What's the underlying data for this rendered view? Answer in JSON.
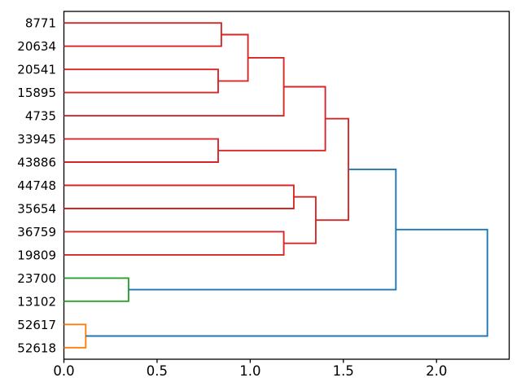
{
  "figure": {
    "background": "#ffffff",
    "spine_color": "#000000",
    "text_color": "#000000"
  },
  "chart_data": {
    "type": "dendrogram",
    "title": "",
    "xlabel": "",
    "ylabel": "",
    "orientation": "leaves-left-root-right",
    "grid": "off",
    "legend": "none",
    "leaves": [
      "8771",
      "20634",
      "20541",
      "15895",
      "4735",
      "33945",
      "43886",
      "44748",
      "35654",
      "36759",
      "19809",
      "23700",
      "13102",
      "52617",
      "52618"
    ],
    "x_ticks": [
      {
        "label": "0.0",
        "value": 0.0
      },
      {
        "label": "0.5",
        "value": 0.5
      },
      {
        "label": "1.0",
        "value": 1.0
      },
      {
        "label": "1.5",
        "value": 1.5
      },
      {
        "label": "2.0",
        "value": 2.0
      }
    ],
    "xlim": [
      0,
      2.39
    ],
    "n_leaves": 15,
    "link_colors": {
      "red": "#d62728",
      "green": "#2ca02c",
      "orange": "#ff7f0e",
      "blue": "#1f77b4"
    },
    "links": [
      {
        "y1": 0,
        "y2": 1,
        "h1": 0,
        "h2": 0,
        "h": 0.845,
        "color": "red"
      },
      {
        "y1": 2,
        "y2": 3,
        "h1": 0,
        "h2": 0,
        "h": 0.828,
        "color": "red"
      },
      {
        "y1": 0.5,
        "y2": 2.5,
        "h1": 0.845,
        "h2": 0.828,
        "h": 0.988,
        "color": "red"
      },
      {
        "y1": 1.5,
        "y2": 4,
        "h1": 0.988,
        "h2": 0,
        "h": 1.18,
        "color": "red"
      },
      {
        "y1": 5,
        "y2": 6,
        "h1": 0,
        "h2": 0,
        "h": 0.828,
        "color": "red"
      },
      {
        "y1": 2.75,
        "y2": 5.5,
        "h1": 1.18,
        "h2": 0.828,
        "h": 1.403,
        "color": "red"
      },
      {
        "y1": 7,
        "y2": 8,
        "h1": 0,
        "h2": 0,
        "h": 1.234,
        "color": "red"
      },
      {
        "y1": 9,
        "y2": 10,
        "h1": 0,
        "h2": 0,
        "h": 1.18,
        "color": "red"
      },
      {
        "y1": 7.5,
        "y2": 9.5,
        "h1": 1.234,
        "h2": 1.18,
        "h": 1.352,
        "color": "red"
      },
      {
        "y1": 4.125,
        "y2": 8.5,
        "h1": 1.403,
        "h2": 1.352,
        "h": 1.527,
        "color": "red"
      },
      {
        "y1": 11,
        "y2": 12,
        "h1": 0,
        "h2": 0,
        "h": 0.347,
        "color": "green"
      },
      {
        "y1": 6.3125,
        "y2": 11.5,
        "h1": 1.527,
        "h2": 0.347,
        "h": 1.782,
        "color": "blue"
      },
      {
        "y1": 13,
        "y2": 14,
        "h1": 0,
        "h2": 0,
        "h": 0.117,
        "color": "orange"
      },
      {
        "y1": 8.90625,
        "y2": 13.5,
        "h1": 1.782,
        "h2": 0.117,
        "h": 2.273,
        "color": "blue"
      }
    ]
  }
}
